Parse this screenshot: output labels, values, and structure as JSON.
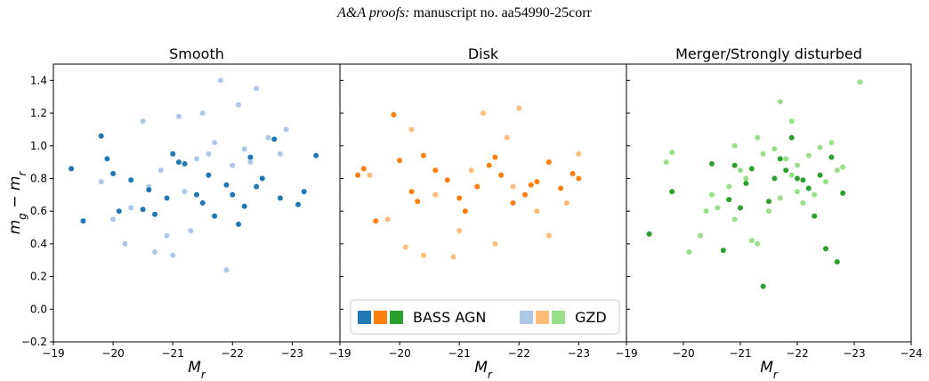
{
  "header": {
    "journal": "A&A proofs:",
    "manuscript": "manuscript no. aa54990-25corr"
  },
  "colors": {
    "smooth_agn": "#1f77b4",
    "smooth_gzd": "#aec7e8",
    "disk_agn": "#ff7f0e",
    "disk_gzd": "#ffbb78",
    "merger_agn": "#2ca02c",
    "merger_gzd": "#98df8a"
  },
  "legend": {
    "agn_label": "BASS AGN",
    "gzd_label": "GZD",
    "placement": "lower-center of middle panel"
  },
  "y_axis": {
    "label": "m_g − m_r",
    "ylim": [
      -0.2,
      1.5
    ],
    "ticks": [
      "−0.2",
      "0.0",
      "0.2",
      "0.4",
      "0.6",
      "0.8",
      "1.0",
      "1.2",
      "1.4"
    ]
  },
  "chart_data": [
    {
      "type": "scatter",
      "title": "Smooth",
      "xlabel": "M_r",
      "xlim": [
        -19,
        -23.8
      ],
      "xticks": [
        "−19",
        "−20",
        "−21",
        "−22",
        "−23"
      ],
      "ylim": [
        -0.2,
        1.5
      ],
      "grid": false,
      "series": [
        {
          "key": "gzd",
          "color": "#aec7e8",
          "x": [
            -21.8,
            -22.4,
            -21.5,
            -22.9,
            -20.5,
            -21.1,
            -20.3,
            -21.9,
            -20.0,
            -21.0,
            -22.1,
            -22.6,
            -21.3,
            -20.9,
            -22.2,
            -21.6,
            -20.7,
            -20.2,
            -19.8,
            -20.6,
            -21.4,
            -20.8,
            -22.0,
            -22.3,
            -22.8,
            -21.2,
            -21.7
          ],
          "y": [
            1.4,
            1.35,
            1.2,
            1.1,
            1.15,
            1.18,
            0.62,
            0.24,
            0.55,
            0.33,
            1.25,
            1.05,
            0.48,
            0.45,
            0.98,
            0.95,
            0.35,
            0.4,
            0.78,
            0.75,
            0.92,
            0.85,
            0.88,
            0.9,
            0.95,
            0.72,
            1.02
          ]
        },
        {
          "key": "agn",
          "color": "#1f77b4",
          "x": [
            -19.3,
            -19.5,
            -19.8,
            -19.9,
            -20.1,
            -20.3,
            -20.5,
            -20.7,
            -20.9,
            -21.0,
            -21.2,
            -21.4,
            -21.5,
            -21.7,
            -21.9,
            -22.0,
            -22.1,
            -22.2,
            -22.3,
            -22.5,
            -22.7,
            -22.8,
            -23.2,
            -23.4,
            -23.1,
            -20.0,
            -21.6,
            -22.4,
            -21.1,
            -20.6
          ],
          "y": [
            0.86,
            0.54,
            1.06,
            0.92,
            0.6,
            0.79,
            0.61,
            0.58,
            0.68,
            0.95,
            0.89,
            0.7,
            0.65,
            0.57,
            0.76,
            0.7,
            0.52,
            0.63,
            0.93,
            0.8,
            1.04,
            0.68,
            0.72,
            0.94,
            0.64,
            0.83,
            0.82,
            0.75,
            0.9,
            0.73
          ]
        }
      ]
    },
    {
      "type": "scatter",
      "title": "Disk",
      "xlabel": "M_r",
      "xlim": [
        -19,
        -23.8
      ],
      "xticks": [
        "−19",
        "−20",
        "−21",
        "−22",
        "−23"
      ],
      "ylim": [
        -0.2,
        1.5
      ],
      "grid": false,
      "series": [
        {
          "key": "gzd",
          "color": "#ffbb78",
          "x": [
            -22.0,
            -21.4,
            -20.2,
            -20.4,
            -20.9,
            -21.6,
            -22.5,
            -23.0,
            -19.5,
            -19.8,
            -20.1,
            -21.0,
            -21.8,
            -22.3,
            -22.8,
            -20.6,
            -21.2,
            -21.9
          ],
          "y": [
            1.23,
            1.2,
            1.1,
            0.33,
            0.32,
            0.4,
            0.45,
            0.95,
            0.82,
            0.55,
            0.38,
            0.48,
            1.05,
            0.6,
            0.65,
            0.7,
            0.85,
            0.75
          ]
        },
        {
          "key": "agn",
          "color": "#ff7f0e",
          "x": [
            -19.4,
            -19.3,
            -19.6,
            -19.9,
            -20.0,
            -20.2,
            -20.4,
            -20.6,
            -20.8,
            -21.0,
            -21.1,
            -21.3,
            -21.5,
            -21.7,
            -21.9,
            -22.1,
            -22.3,
            -22.5,
            -22.7,
            -22.9,
            -23.0,
            -20.3,
            -21.6,
            -22.2
          ],
          "y": [
            0.86,
            0.82,
            0.54,
            1.19,
            0.91,
            0.72,
            0.94,
            0.85,
            0.79,
            0.68,
            0.6,
            0.75,
            0.88,
            0.82,
            0.65,
            0.7,
            0.78,
            0.9,
            0.74,
            0.83,
            0.8,
            0.66,
            0.93,
            0.76
          ]
        }
      ]
    },
    {
      "type": "scatter",
      "title": "Merger/Strongly disturbed",
      "xlabel": "M_r",
      "xlim": [
        -19,
        -24
      ],
      "xticks": [
        "−19",
        "−20",
        "−21",
        "−22",
        "−23",
        "−24"
      ],
      "ylim": [
        -0.2,
        1.5
      ],
      "grid": false,
      "series": [
        {
          "key": "gzd",
          "color": "#98df8a",
          "x": [
            -23.1,
            -21.7,
            -21.9,
            -21.3,
            -20.9,
            -20.5,
            -19.8,
            -19.7,
            -21.0,
            -21.4,
            -21.6,
            -21.8,
            -22.0,
            -22.2,
            -22.4,
            -22.6,
            -22.8,
            -20.3,
            -20.1,
            -21.2,
            -21.5,
            -22.1,
            -22.3,
            -21.1,
            -20.8,
            -20.6,
            -21.9,
            -22.5,
            -22.7,
            -21.3,
            -20.9,
            -22.0,
            -21.7,
            -20.4
          ],
          "y": [
            1.39,
            1.27,
            1.15,
            1.05,
            1.0,
            0.7,
            0.96,
            0.9,
            0.85,
            0.95,
            0.98,
            0.92,
            0.88,
            0.94,
            0.99,
            1.02,
            0.87,
            0.45,
            0.35,
            0.42,
            0.6,
            0.65,
            0.7,
            0.8,
            0.75,
            0.62,
            0.82,
            0.78,
            0.85,
            0.4,
            0.55,
            0.72,
            0.68,
            0.6
          ]
        },
        {
          "key": "agn",
          "color": "#2ca02c",
          "x": [
            -19.4,
            -19.8,
            -20.5,
            -20.7,
            -21.0,
            -21.2,
            -21.4,
            -21.6,
            -21.8,
            -21.9,
            -22.1,
            -22.3,
            -22.5,
            -22.6,
            -22.7,
            -22.8,
            -20.9,
            -21.1,
            -21.5,
            -22.0,
            -22.2,
            -21.7,
            -22.4,
            -20.8
          ],
          "y": [
            0.46,
            0.72,
            0.89,
            0.36,
            0.62,
            0.86,
            0.14,
            0.8,
            0.85,
            1.05,
            0.79,
            0.57,
            0.37,
            0.93,
            0.29,
            0.71,
            0.88,
            0.77,
            0.66,
            0.8,
            0.74,
            0.92,
            0.82,
            0.67
          ]
        }
      ]
    }
  ]
}
